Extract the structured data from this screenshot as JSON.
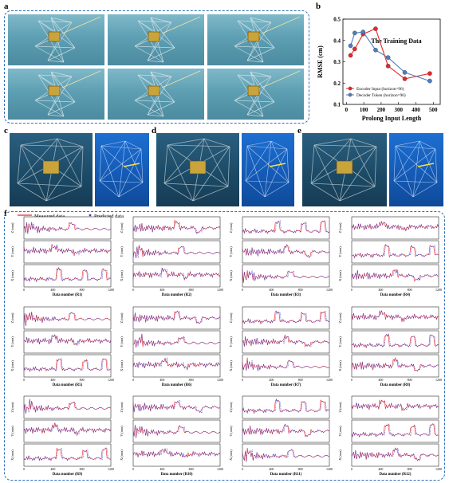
{
  "panel_labels": {
    "a": "a",
    "b": "b",
    "c": "c",
    "d": "d",
    "e": "e",
    "f": "f"
  },
  "chart_data": [
    {
      "type": "line",
      "panel": "b",
      "title": "The Training Data",
      "xlabel": "Prolong Input Length",
      "ylabel": "RMSE (cm)",
      "xlim": [
        -20,
        540
      ],
      "ylim": [
        0.1,
        0.5
      ],
      "xticks": [
        0,
        100,
        200,
        300,
        400,
        500
      ],
      "yticks": [
        0.1,
        0.2,
        0.3,
        0.4,
        0.5
      ],
      "legend_position": "lower-left",
      "series": [
        {
          "name": "Encoder Input (horizon=96)",
          "color": "#e8262b",
          "x": [
            24,
            48,
            96,
            168,
            240,
            336,
            480
          ],
          "y": [
            0.33,
            0.36,
            0.43,
            0.455,
            0.28,
            0.22,
            0.245
          ]
        },
        {
          "name": "Decoder Token (horizon=96)",
          "color": "#4f7fbf",
          "x": [
            24,
            48,
            96,
            168,
            240,
            336,
            480
          ],
          "y": [
            0.375,
            0.435,
            0.44,
            0.355,
            0.32,
            0.25,
            0.21
          ]
        }
      ]
    },
    {
      "type": "line",
      "panel": "f",
      "legend": [
        "Measured data",
        "Predicted data"
      ],
      "colors": {
        "measured": "#e8262b",
        "predicted": "#2b3bd6"
      },
      "xticks": [
        0,
        400,
        800,
        1200
      ],
      "subplots": [
        {
          "xlabel": "Data number (R1)",
          "ylabels": [
            "Z (mm)",
            "Y (mm)",
            "X (mm)"
          ]
        },
        {
          "xlabel": "Data number (R2)",
          "ylabels": [
            "Z (mm)",
            "Y (mm)",
            "X (mm)"
          ]
        },
        {
          "xlabel": "Data number (R3)",
          "ylabels": [
            "Z (mm)",
            "Y (mm)",
            "X (mm)"
          ]
        },
        {
          "xlabel": "Data number (R4)",
          "ylabels": [
            "Z (mm)",
            "Y (mm)",
            "X (mm)"
          ]
        },
        {
          "xlabel": "Data number (R5)",
          "ylabels": [
            "Z (mm)",
            "Y (mm)",
            "X (mm)"
          ]
        },
        {
          "xlabel": "Data number (R6)",
          "ylabels": [
            "Z (mm)",
            "Y (mm)",
            "X (mm)"
          ]
        },
        {
          "xlabel": "Data number (R7)",
          "ylabels": [
            "Z (mm)",
            "Y (mm)",
            "X (mm)"
          ]
        },
        {
          "xlabel": "Data number (R8)",
          "ylabels": [
            "Z (mm)",
            "Y (mm)",
            "X (mm)"
          ]
        },
        {
          "xlabel": "Data number (R9)",
          "ylabels": [
            "Z (mm)",
            "Y (mm)",
            "X (mm)"
          ]
        },
        {
          "xlabel": "Data number (R10)",
          "ylabels": [
            "Z (mm)",
            "Y (mm)",
            "X (mm)"
          ]
        },
        {
          "xlabel": "Data number (R11)",
          "ylabels": [
            "Z (mm)",
            "Y (mm)",
            "X (mm)"
          ]
        },
        {
          "xlabel": "Data number (R12)",
          "ylabels": [
            "Z (mm)",
            "Y (mm)",
            "X (mm)"
          ]
        }
      ]
    }
  ]
}
